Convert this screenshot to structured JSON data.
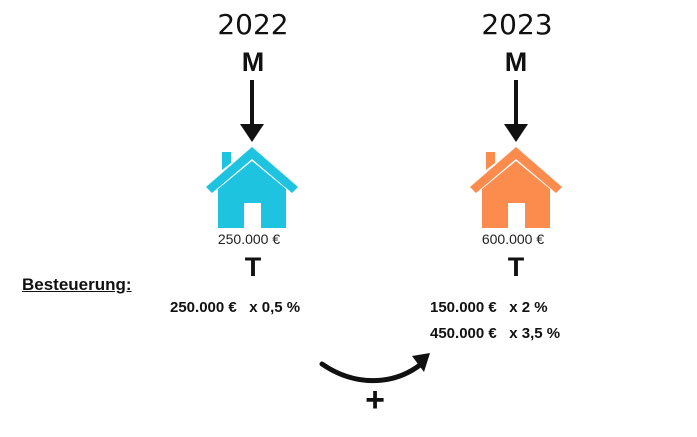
{
  "columns": [
    {
      "year": "2022",
      "top_letter": "M",
      "bottom_letter": "T",
      "price": "250.000 €",
      "house_color": "#1ec3e0",
      "tax_lines": [
        "250.000 €   x 0,5 %"
      ]
    },
    {
      "year": "2023",
      "top_letter": "M",
      "bottom_letter": "T",
      "price": "600.000 €",
      "house_color": "#fb8c4d",
      "tax_lines": [
        "150.000 €   x 2 %",
        "450.000 €   x 3,5 %"
      ]
    }
  ],
  "taxation_label": "Besteuerung:",
  "plus_sign": "+",
  "icons": [
    "arrow-down-icon",
    "house-icon",
    "curved-arrow-icon"
  ]
}
